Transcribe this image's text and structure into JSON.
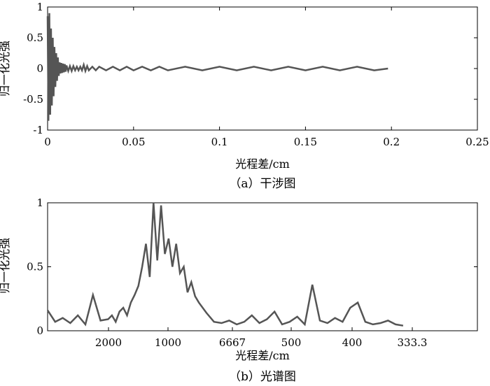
{
  "chart_data": [
    {
      "type": "line",
      "title": "",
      "caption": "（a）干涉图",
      "xlabel": "光程差/cm",
      "ylabel": "归一化光强",
      "xlim": [
        0,
        0.25
      ],
      "ylim": [
        -1,
        1
      ],
      "x_ticks": [
        0,
        0.05,
        0.1,
        0.15,
        0.2,
        0.25
      ],
      "x_tick_labels": [
        "0",
        "0.05",
        "0.1",
        "0.15",
        "0.2",
        "0.25"
      ],
      "y_ticks": [
        -1,
        -0.5,
        0,
        0.5,
        1
      ],
      "y_tick_labels": [
        "-1",
        "-0.5",
        "0",
        "0.5",
        "1"
      ],
      "grid": false,
      "line_color": "#555555",
      "series": [
        {
          "x": [
            0,
            0.0005,
            0.001,
            0.0015,
            0.002,
            0.0025,
            0.003,
            0.0035,
            0.004,
            0.0045,
            0.005,
            0.0055,
            0.006,
            0.0065,
            0.007,
            0.0075,
            0.008,
            0.0085,
            0.009,
            0.0095,
            0.01,
            0.0105,
            0.011,
            0.012,
            0.013,
            0.014,
            0.015,
            0.016,
            0.017,
            0.018,
            0.019,
            0.02,
            0.021,
            0.022,
            0.023,
            0.024,
            0.026,
            0.028,
            0.03,
            0.034,
            0.038,
            0.042,
            0.046,
            0.05,
            0.055,
            0.06,
            0.065,
            0.07,
            0.08,
            0.09,
            0.1,
            0.11,
            0.12,
            0.13,
            0.14,
            0.15,
            0.16,
            0.17,
            0.18,
            0.19,
            0.198
          ],
          "y": [
            0.85,
            -0.85,
            0.9,
            -0.75,
            0.65,
            -0.6,
            0.5,
            -0.45,
            0.35,
            -0.3,
            0.25,
            -0.2,
            0.18,
            -0.12,
            0.1,
            -0.08,
            0.09,
            -0.07,
            0.08,
            -0.06,
            0.07,
            -0.05,
            0.05,
            -0.04,
            0.04,
            -0.04,
            0.04,
            -0.03,
            0.03,
            -0.03,
            0.03,
            -0.03,
            0.06,
            -0.04,
            0.04,
            -0.03,
            0.03,
            -0.03,
            0.03,
            -0.03,
            0.03,
            -0.03,
            0.03,
            -0.03,
            0.03,
            -0.03,
            0.03,
            -0.03,
            0.03,
            -0.03,
            0.03,
            -0.03,
            0.03,
            -0.03,
            0.03,
            -0.03,
            0.03,
            -0.03,
            0.03,
            -0.03,
            0.0
          ]
        }
      ]
    },
    {
      "type": "line",
      "title": "",
      "caption": "（b）光谱图",
      "xlabel": "光程差/cm",
      "ylabel": "归一化光强",
      "ylim": [
        0,
        1
      ],
      "x_tick_labels": [
        "2000",
        "1000",
        "6667",
        "500",
        "400",
        "333.3"
      ],
      "y_ticks": [
        0,
        0.5,
        1
      ],
      "y_tick_labels": [
        "0",
        "0.5",
        "1"
      ],
      "grid": false,
      "line_color": "#555555",
      "series": [
        {
          "x": [
            0,
            0.02,
            0.04,
            0.06,
            0.08,
            0.1,
            0.12,
            0.14,
            0.16,
            0.17,
            0.18,
            0.19,
            0.2,
            0.21,
            0.22,
            0.23,
            0.24,
            0.25,
            0.26,
            0.27,
            0.28,
            0.29,
            0.3,
            0.31,
            0.32,
            0.33,
            0.34,
            0.35,
            0.36,
            0.37,
            0.38,
            0.39,
            0.4,
            0.42,
            0.44,
            0.46,
            0.48,
            0.5,
            0.52,
            0.54,
            0.56,
            0.58,
            0.6,
            0.62,
            0.64,
            0.66,
            0.68,
            0.7,
            0.72,
            0.74,
            0.76,
            0.78,
            0.8,
            0.82,
            0.84,
            0.86,
            0.88,
            0.9,
            0.92,
            0.94
          ],
          "y": [
            0.16,
            0.07,
            0.1,
            0.06,
            0.12,
            0.05,
            0.28,
            0.08,
            0.09,
            0.12,
            0.07,
            0.15,
            0.18,
            0.12,
            0.22,
            0.28,
            0.35,
            0.5,
            0.68,
            0.42,
            1.0,
            0.55,
            0.98,
            0.6,
            0.72,
            0.5,
            0.68,
            0.45,
            0.5,
            0.3,
            0.38,
            0.27,
            0.22,
            0.14,
            0.07,
            0.06,
            0.08,
            0.05,
            0.07,
            0.12,
            0.06,
            0.09,
            0.15,
            0.05,
            0.07,
            0.11,
            0.05,
            0.36,
            0.08,
            0.06,
            0.1,
            0.07,
            0.18,
            0.22,
            0.07,
            0.05,
            0.06,
            0.08,
            0.05,
            0.04
          ]
        }
      ]
    }
  ]
}
